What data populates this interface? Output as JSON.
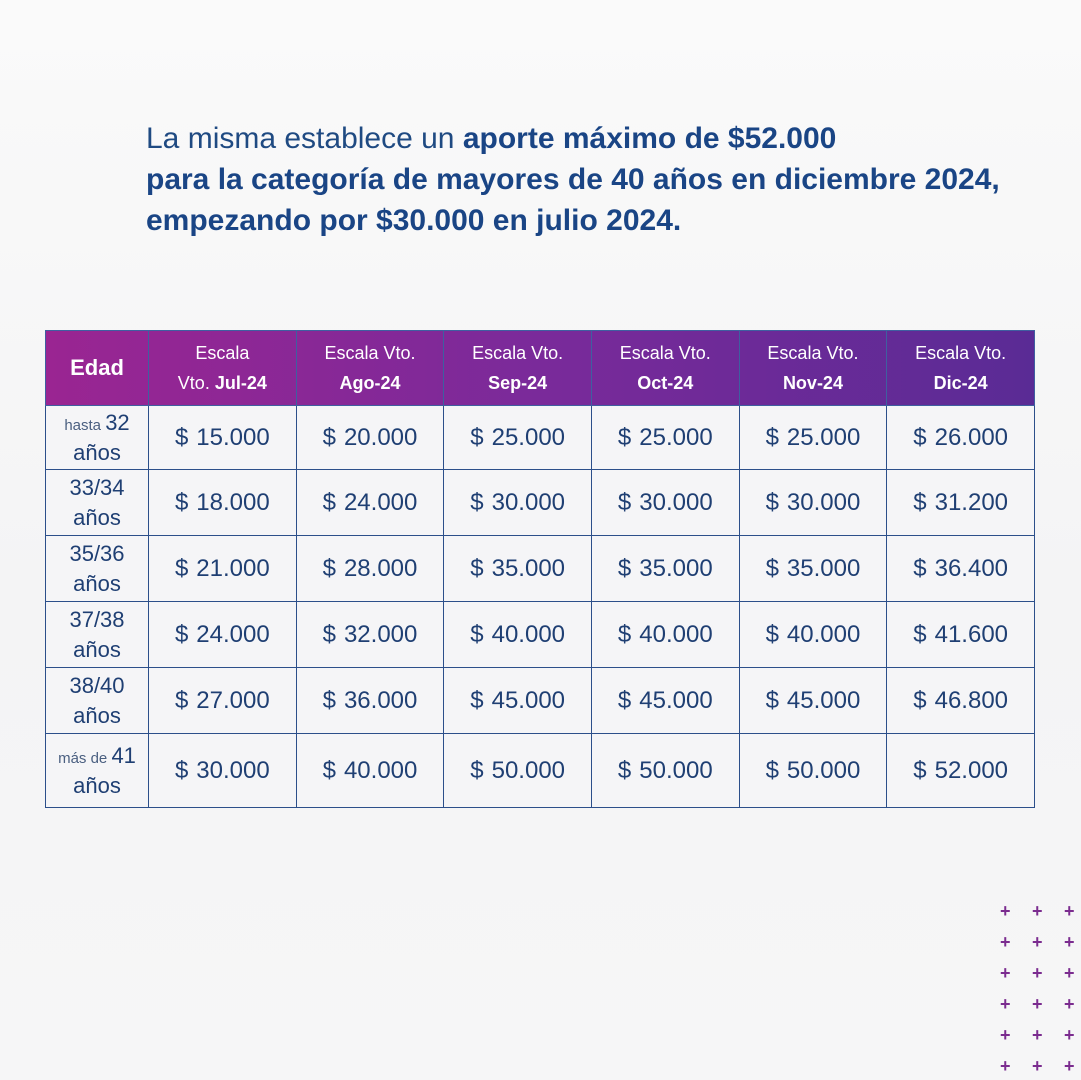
{
  "intro": {
    "part1": "La misma establece un ",
    "bold1": "aporte máximo de $52.000",
    "bold2": "para la categoría de mayores de 40 años en diciembre 2024, empezando por $30.000 en julio 2024."
  },
  "table": {
    "header": {
      "edad": "Edad",
      "columns": [
        {
          "line1": "Escala",
          "line2_prefix": "Vto. ",
          "line2_bold": "Jul-24"
        },
        {
          "line1": "Escala Vto.",
          "line2_prefix": "",
          "line2_bold": "Ago-24"
        },
        {
          "line1": "Escala Vto.",
          "line2_prefix": "",
          "line2_bold": "Sep-24"
        },
        {
          "line1": "Escala Vto.",
          "line2_prefix": "",
          "line2_bold": "Oct-24"
        },
        {
          "line1": "Escala Vto.",
          "line2_prefix": "",
          "line2_bold": "Nov-24"
        },
        {
          "line1": "Escala Vto.",
          "line2_prefix": "",
          "line2_bold": "Dic-24"
        }
      ]
    },
    "currency": "$",
    "rows": [
      {
        "age_small": "hasta ",
        "age_main": "32",
        "age_line2": "años",
        "values": [
          "15.000",
          "20.000",
          "25.000",
          "25.000",
          "25.000",
          "26.000"
        ]
      },
      {
        "age_small": "",
        "age_main": "33/34",
        "age_line2": "años",
        "values": [
          "18.000",
          "24.000",
          "30.000",
          "30.000",
          "30.000",
          "31.200"
        ]
      },
      {
        "age_small": "",
        "age_main": "35/36",
        "age_line2": "años",
        "values": [
          "21.000",
          "28.000",
          "35.000",
          "35.000",
          "35.000",
          "36.400"
        ]
      },
      {
        "age_small": "",
        "age_main": "37/38",
        "age_line2": "años",
        "values": [
          "24.000",
          "32.000",
          "40.000",
          "40.000",
          "40.000",
          "41.600"
        ]
      },
      {
        "age_small": "",
        "age_main": "38/40",
        "age_line2": "años",
        "values": [
          "27.000",
          "36.000",
          "45.000",
          "45.000",
          "45.000",
          "46.800"
        ]
      },
      {
        "age_small": "más de ",
        "age_main": "41",
        "age_line2": "años",
        "values": [
          "30.000",
          "40.000",
          "50.000",
          "50.000",
          "50.000",
          "52.000"
        ]
      }
    ]
  },
  "colors": {
    "header_start": "#9a2592",
    "header_end": "#5a2b95",
    "text": "#1f4a82",
    "decor": "#7b2c8f"
  }
}
